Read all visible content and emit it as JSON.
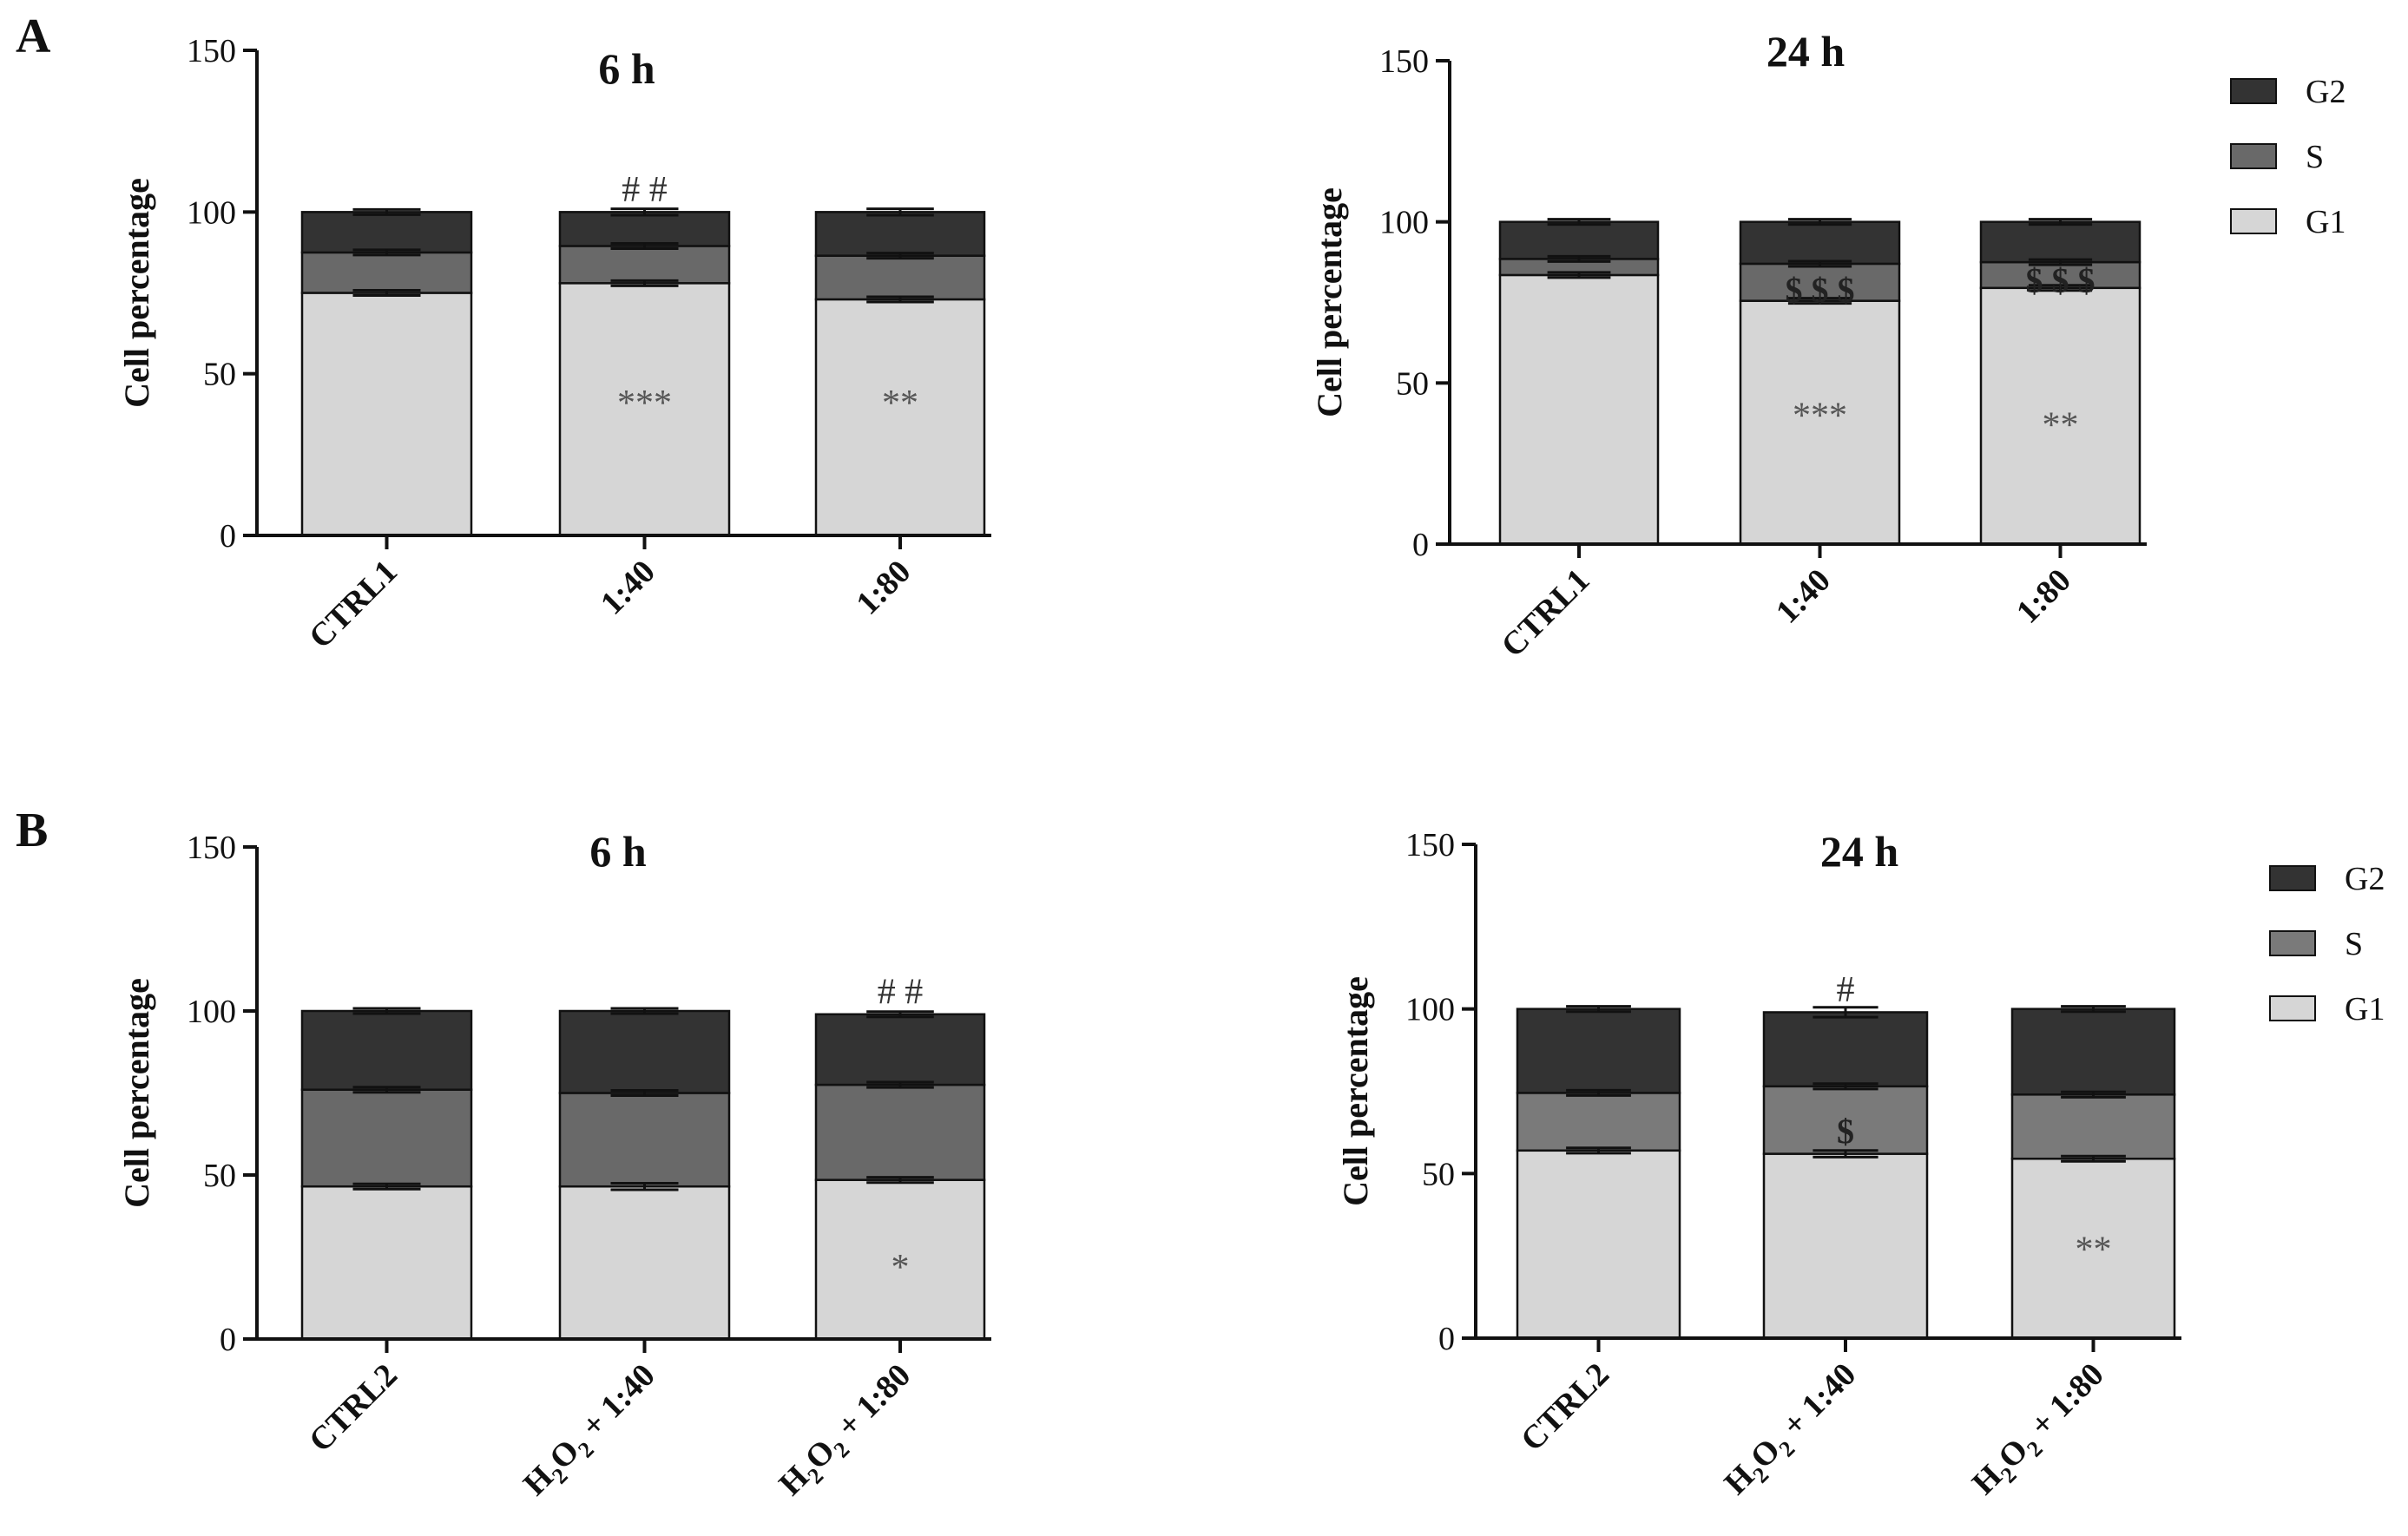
{
  "panels": [
    {
      "letter": "A"
    },
    {
      "letter": "B"
    }
  ],
  "chart_data": [
    {
      "type": "bar",
      "stacked": true,
      "panel": "A",
      "title": "6 h",
      "xlabel": "",
      "ylabel": "Cell percentage",
      "ylim": [
        0,
        150
      ],
      "yticks": [
        "0",
        "50",
        "100",
        "150"
      ],
      "categories": [
        "CTRL1",
        "1:40",
        "1:80"
      ],
      "series": [
        {
          "name": "G1",
          "color": "#d6d6d6",
          "values": [
            75,
            78,
            73
          ],
          "errors": [
            0.8,
            0.8,
            0.8
          ]
        },
        {
          "name": "S",
          "color": "#696969",
          "values": [
            12.5,
            11.5,
            13.5
          ],
          "errors": [
            0.8,
            0.8,
            0.8
          ]
        },
        {
          "name": "G2",
          "color": "#333333",
          "values": [
            12.5,
            10.5,
            13.5
          ],
          "errors": [
            0.8,
            1.0,
            1.0
          ]
        }
      ],
      "annotations": [
        {
          "category": "1:40",
          "text": "***",
          "y": 41,
          "color": "#555555"
        },
        {
          "category": "1:80",
          "text": "**",
          "y": 41,
          "color": "#555555"
        },
        {
          "category": "1:40",
          "text": "# #",
          "y": 107,
          "color": "#333333"
        }
      ],
      "legend": null
    },
    {
      "type": "bar",
      "stacked": true,
      "panel": "A",
      "title": "24 h",
      "xlabel": "",
      "ylabel": "Cell percentage",
      "ylim": [
        0,
        150
      ],
      "yticks": [
        "0",
        "50",
        "100",
        "150"
      ],
      "categories": [
        "CTRL1",
        "1:40",
        "1:80"
      ],
      "series": [
        {
          "name": "G1",
          "color": "#d6d6d6",
          "values": [
            83.5,
            75.5,
            79.5
          ],
          "errors": [
            0.8,
            0.8,
            0.8
          ]
        },
        {
          "name": "S",
          "color": "#696969",
          "values": [
            5,
            11.5,
            8
          ],
          "errors": [
            0.8,
            0.8,
            0.8
          ]
        },
        {
          "name": "G2",
          "color": "#333333",
          "values": [
            11.5,
            13,
            12.5
          ],
          "errors": [
            0.8,
            0.8,
            0.8
          ]
        }
      ],
      "annotations": [
        {
          "category": "1:40",
          "text": "***",
          "y": 40,
          "color": "#555555"
        },
        {
          "category": "1:80",
          "text": "**",
          "y": 37,
          "color": "#555555"
        },
        {
          "category": "1:40",
          "text": "$ $ $",
          "y": 79,
          "color": "#222222"
        },
        {
          "category": "1:80",
          "text": "$ $ $",
          "y": 82,
          "color": "#222222"
        }
      ],
      "legend": {
        "position": "right",
        "order": [
          "G2",
          "S",
          "G1"
        ]
      }
    },
    {
      "type": "bar",
      "stacked": true,
      "panel": "B",
      "title": "6 h",
      "xlabel": "",
      "ylabel": "Cell percentage",
      "ylim": [
        0,
        150
      ],
      "yticks": [
        "0",
        "50",
        "100",
        "150"
      ],
      "categories": [
        "CTRL2",
        "H2O2 + 1:40",
        "H2O2 + 1:80"
      ],
      "series": [
        {
          "name": "G1",
          "color": "#d6d6d6",
          "values": [
            46.5,
            46.5,
            48.5
          ],
          "errors": [
            0.8,
            1.0,
            0.8
          ]
        },
        {
          "name": "S",
          "color": "#696969",
          "values": [
            29.5,
            28.5,
            29
          ],
          "errors": [
            0.8,
            0.8,
            0.8
          ]
        },
        {
          "name": "G2",
          "color": "#333333",
          "values": [
            24,
            25,
            21.5
          ],
          "errors": [
            0.5,
            0.5,
            0.8
          ]
        }
      ],
      "annotations": [
        {
          "category": "H2O2 + 1:80",
          "text": "*",
          "y": 22,
          "color": "#555555"
        },
        {
          "category": "H2O2 + 1:80",
          "text": "# #",
          "y": 106,
          "color": "#333333"
        }
      ],
      "legend": null
    },
    {
      "type": "bar",
      "stacked": true,
      "panel": "B",
      "title": "24 h",
      "xlabel": "",
      "ylabel": "Cell percentage",
      "ylim": [
        0,
        150
      ],
      "yticks": [
        "0",
        "50",
        "100",
        "150"
      ],
      "categories": [
        "CTRL2",
        "H2O2 + 1:40",
        "H2O2 + 1:80"
      ],
      "series": [
        {
          "name": "G1",
          "color": "#d6d6d6",
          "values": [
            57,
            56,
            54.5
          ],
          "errors": [
            0.8,
            1.0,
            0.5
          ]
        },
        {
          "name": "S",
          "color": "#7a7a7a",
          "values": [
            17.5,
            20.5,
            19.5
          ],
          "errors": [
            0.8,
            0.8,
            0.8
          ]
        },
        {
          "name": "G2",
          "color": "#333333",
          "values": [
            25.5,
            22.5,
            26
          ],
          "errors": [
            0.8,
            1.5,
            0.8
          ]
        }
      ],
      "annotations": [
        {
          "category": "H2O2 + 1:80",
          "text": "**",
          "y": 27,
          "color": "#555555"
        },
        {
          "category": "H2O2 + 1:40",
          "text": "$",
          "y": 63,
          "color": "#222222"
        },
        {
          "category": "H2O2 + 1:40",
          "text": "#",
          "y": 106,
          "color": "#333333"
        }
      ],
      "legend": {
        "position": "right",
        "order": [
          "G2",
          "S",
          "G1"
        ]
      }
    }
  ]
}
